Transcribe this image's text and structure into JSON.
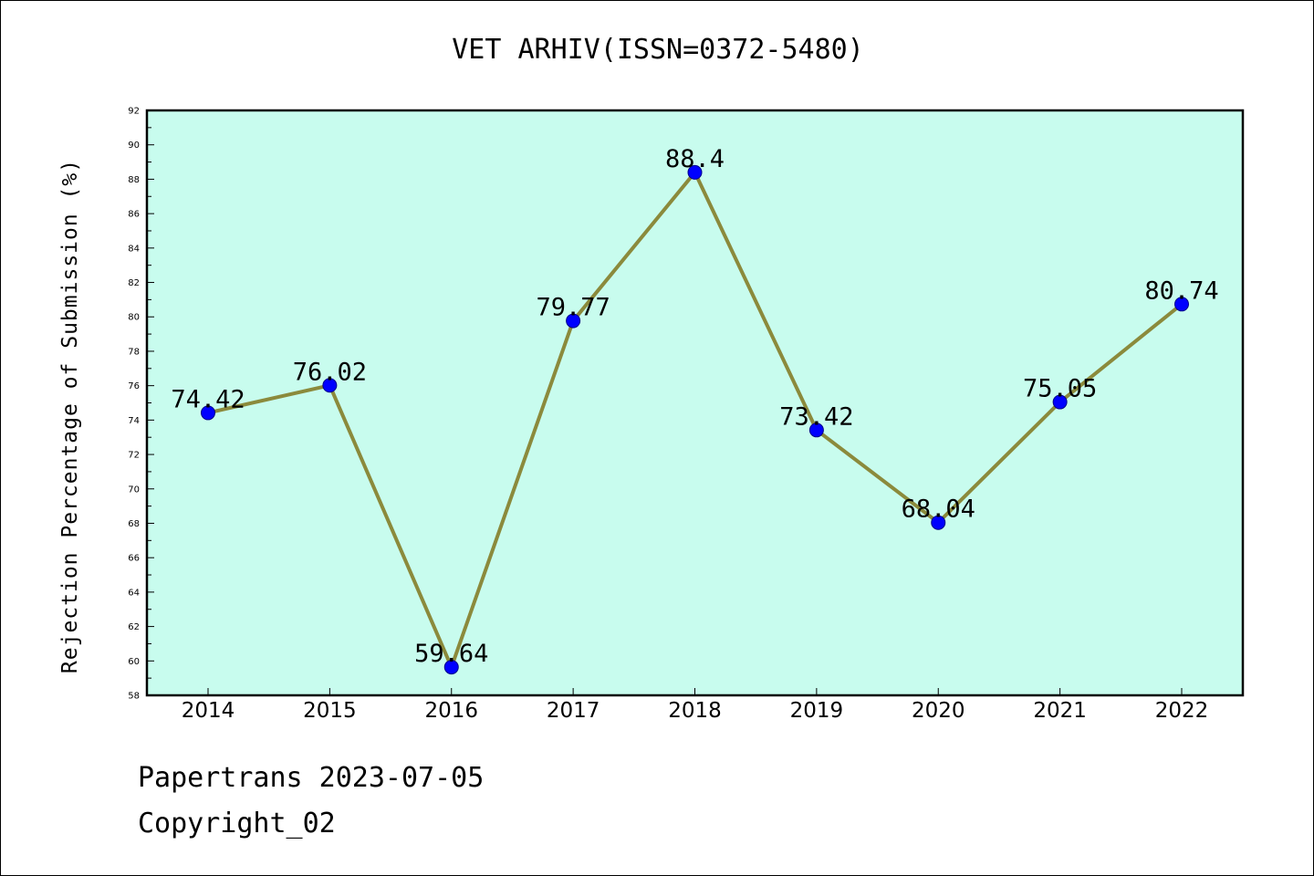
{
  "chart_data": {
    "type": "line",
    "title": "VET ARHIV(ISSN=0372-5480)",
    "xlabel": "",
    "ylabel": "Rejection Percentage of Submission (%)",
    "categories": [
      "2014",
      "2015",
      "2016",
      "2017",
      "2018",
      "2019",
      "2020",
      "2021",
      "2022"
    ],
    "series": [
      {
        "values": [
          74.42,
          76.02,
          59.64,
          79.77,
          88.4,
          73.42,
          68.04,
          75.05,
          80.74
        ],
        "data_labels": [
          "74.42",
          "76.02",
          "59.64",
          "79.77",
          "88.4",
          "73.42",
          "68.04",
          "75.05",
          "80.74"
        ]
      }
    ],
    "ylim": [
      58,
      92
    ],
    "yticks": [
      "58",
      "60",
      "62",
      "64",
      "66",
      "68",
      "70",
      "72",
      "74",
      "76",
      "78",
      "80",
      "82",
      "84",
      "86",
      "88",
      "90",
      "92"
    ],
    "grid": false,
    "legend": "none",
    "colors": {
      "plot_background": "#c8fcee",
      "line": "#8b8a3c",
      "marker": "#0000ff",
      "marker_edge": "#00008b",
      "axes": "#000000"
    }
  },
  "footer": {
    "line1": "Papertrans 2023-07-05",
    "line2": "Copyright_02"
  }
}
